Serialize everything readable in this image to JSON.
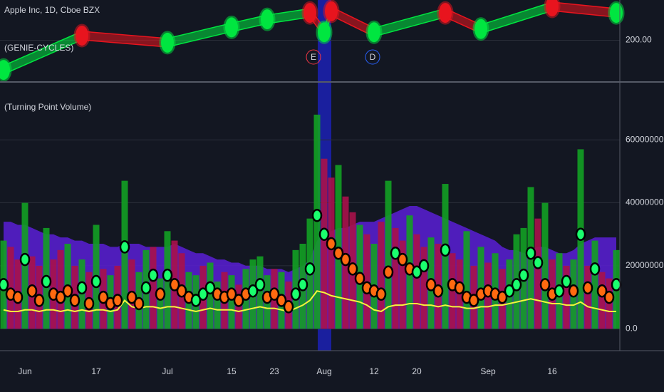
{
  "chart_data": [
    {
      "type": "line",
      "title": "Apple Inc, 1D, Cboe BZX",
      "subtitle": "(GENIE-CYCLES)",
      "x": [
        0,
        11,
        23,
        32,
        37,
        43,
        45,
        46,
        52,
        62,
        67,
        77,
        86
      ],
      "values": [
        181.6,
        202.9,
        198.5,
        208,
        213,
        217,
        205,
        218,
        205,
        217,
        207,
        221,
        217
      ],
      "up_color": "#00e640",
      "down_color": "#e8141e",
      "ylim": [
        175,
        225
      ],
      "yticks": [
        {
          "value": 200,
          "label": "200.00"
        }
      ],
      "annotations": [
        {
          "text": "E",
          "color": "#f23645"
        },
        {
          "text": "D",
          "color": "#2962ff"
        }
      ]
    },
    {
      "type": "bar",
      "title": "(Turning Point Volume)",
      "categories": [
        null,
        null,
        null,
        "Jun",
        null,
        null,
        null,
        null,
        null,
        null,
        null,
        null,
        null,
        "17",
        null,
        null,
        null,
        null,
        null,
        null,
        null,
        null,
        null,
        "Jul",
        null,
        null,
        null,
        null,
        null,
        null,
        null,
        null,
        "15",
        null,
        null,
        null,
        null,
        null,
        "23",
        null,
        null,
        null,
        null,
        null,
        null,
        "Aug",
        null,
        null,
        null,
        null,
        null,
        null,
        "12",
        null,
        null,
        null,
        null,
        null,
        "20",
        null,
        null,
        null,
        null,
        null,
        null,
        null,
        null,
        null,
        "Sep",
        null,
        null,
        null,
        null,
        null,
        null,
        null,
        null,
        "16",
        null,
        null,
        null,
        null,
        null,
        null,
        null,
        null,
        null
      ],
      "values": [
        28000000.0,
        26000000.0,
        22000000.0,
        40000000.0,
        23000000.0,
        20000000.0,
        32000000.0,
        22000000.0,
        25000000.0,
        27000000.0,
        20000000.0,
        22000000.0,
        18000000.0,
        33000000.0,
        19000000.0,
        17000000.0,
        20000000.0,
        47000000.0,
        22000000.0,
        18000000.0,
        25000000.0,
        26000000.0,
        16000000.0,
        31000000.0,
        28000000.0,
        24000000.0,
        18000000.0,
        17000000.0,
        20000000.0,
        21000000.0,
        15000000.0,
        18000000.0,
        17000000.0,
        14000000.0,
        19000000.0,
        22000000.0,
        23000000.0,
        17000000.0,
        19000000.0,
        18000000.0,
        15000000.0,
        25000000.0,
        27000000.0,
        35000000.0,
        68000000.0,
        54000000.0,
        48000000.0,
        52000000.0,
        42000000.0,
        37000000.0,
        33000000.0,
        30000000.0,
        27000000.0,
        34000000.0,
        47000000.0,
        32000000.0,
        28000000.0,
        36000000.0,
        30000000.0,
        26000000.0,
        29000000.0,
        27000000.0,
        46000000.0,
        24000000.0,
        22000000.0,
        31000000.0,
        20000000.0,
        26000000.0,
        21000000.0,
        24000000.0,
        19000000.0,
        22000000.0,
        30000000.0,
        32000000.0,
        45000000.0,
        35000000.0,
        40000000.0,
        22000000.0,
        24000000.0,
        20000000.0,
        22000000.0,
        57000000.0,
        20000000.0,
        28000000.0,
        18000000.0,
        16000000.0,
        25000000.0
      ],
      "bar_colors": [
        "#13a024",
        "#a8124a",
        "#a8124a",
        "#13a024",
        "#a8124a",
        "#a8124a",
        "#13a024",
        "#a8124a",
        "#a8124a",
        "#13a024",
        "#a8124a",
        "#13a024",
        "#a8124a",
        "#13a024",
        "#a8124a",
        "#13a024",
        "#a8124a",
        "#13a024",
        "#a8124a",
        "#13a024",
        "#13a024",
        "#a8124a",
        "#13a024",
        "#13a024",
        "#a8124a",
        "#a8124a",
        "#13a024",
        "#13a024",
        "#a8124a",
        "#13a024",
        "#13a024",
        "#a8124a",
        "#13a024",
        "#a8124a",
        "#13a024",
        "#13a024",
        "#13a024",
        "#13a024",
        "#a8124a",
        "#13a024",
        "#a8124a",
        "#13a024",
        "#13a024",
        "#13a024",
        "#13a024",
        "#a8124a",
        "#a8124a",
        "#13a024",
        "#a8124a",
        "#a8124a",
        "#13a024",
        "#a8124a",
        "#13a024",
        "#a8124a",
        "#13a024",
        "#a8124a",
        "#a8124a",
        "#13a024",
        "#a8124a",
        "#a8124a",
        "#13a024",
        "#a8124a",
        "#13a024",
        "#a8124a",
        "#a8124a",
        "#13a024",
        "#a8124a",
        "#13a024",
        "#a8124a",
        "#13a024",
        "#a8124a",
        "#13a024",
        "#13a024",
        "#13a024",
        "#13a024",
        "#a8124a",
        "#13a024",
        "#a8124a",
        "#13a024",
        "#a8124a",
        "#13a024",
        "#13a024",
        "#a8124a",
        "#13a024",
        "#a8124a",
        "#a8124a",
        "#13a024"
      ],
      "average": [
        34000000.0,
        34000000.0,
        33000000.0,
        33000000.0,
        32000000.0,
        31000000.0,
        30000000.0,
        30000000.0,
        29000000.0,
        29000000.0,
        28000000.0,
        28000000.0,
        27000000.0,
        27000000.0,
        27000000.0,
        26000000.0,
        26000000.0,
        27000000.0,
        27000000.0,
        27000000.0,
        26000000.0,
        26000000.0,
        26000000.0,
        26000000.0,
        27000000.0,
        26000000.0,
        25000000.0,
        24000000.0,
        24000000.0,
        23000000.0,
        22000000.0,
        22000000.0,
        21000000.0,
        21000000.0,
        20000000.0,
        20000000.0,
        20000000.0,
        19000000.0,
        19000000.0,
        19000000.0,
        18000000.0,
        19000000.0,
        20000000.0,
        22000000.0,
        28000000.0,
        30000000.0,
        31000000.0,
        32000000.0,
        32000000.0,
        33000000.0,
        34000000.0,
        34000000.0,
        34000000.0,
        35000000.0,
        36000000.0,
        37000000.0,
        38000000.0,
        39000000.0,
        39000000.0,
        38000000.0,
        37000000.0,
        36000000.0,
        35000000.0,
        34000000.0,
        33000000.0,
        32000000.0,
        31000000.0,
        30000000.0,
        29000000.0,
        28000000.0,
        26000000.0,
        25000000.0,
        25000000.0,
        24000000.0,
        25000000.0,
        26000000.0,
        26000000.0,
        25000000.0,
        24000000.0,
        24000000.0,
        25000000.0,
        27000000.0,
        28000000.0,
        29000000.0,
        29000000.0,
        29000000.0,
        29000000.0
      ],
      "average_color": "#5b1fd6",
      "line": [
        6000000.0,
        5500000.0,
        5500000.0,
        6000000.0,
        6000000.0,
        5500000.0,
        6000000.0,
        6000000.0,
        5500000.0,
        6000000.0,
        5500000.0,
        6000000.0,
        5500000.0,
        6000000.0,
        6000000.0,
        5500000.0,
        6000000.0,
        9000000.0,
        7000000.0,
        6500000.0,
        7000000.0,
        7000000.0,
        6500000.0,
        7000000.0,
        7000000.0,
        6500000.0,
        6000000.0,
        5500000.0,
        6000000.0,
        6500000.0,
        6000000.0,
        6000000.0,
        6000000.0,
        5500000.0,
        6000000.0,
        6500000.0,
        7000000.0,
        6500000.0,
        6500000.0,
        6000000.0,
        5500000.0,
        6500000.0,
        7500000.0,
        9000000.0,
        12000000.0,
        11500000.0,
        10500000.0,
        10000000.0,
        9500000.0,
        9000000.0,
        8500000.0,
        7500000.0,
        6000000.0,
        5500000.0,
        7000000.0,
        7500000.0,
        7500000.0,
        8000000.0,
        8000000.0,
        7500000.0,
        7500000.0,
        7000000.0,
        7500000.0,
        7000000.0,
        7000000.0,
        6500000.0,
        6500000.0,
        7000000.0,
        7000000.0,
        7500000.0,
        7500000.0,
        8000000.0,
        8500000.0,
        9000000.0,
        9500000.0,
        9000000.0,
        8500000.0,
        8000000.0,
        8000000.0,
        7500000.0,
        7500000.0,
        8500000.0,
        7000000.0,
        6500000.0,
        6000000.0,
        5500000.0,
        5500000.0
      ],
      "line_color": "#f5f53c",
      "markers": [
        14000000.0,
        11000000.0,
        10000000.0,
        22000000.0,
        12000000.0,
        9000000.0,
        15000000.0,
        11000000.0,
        10000000.0,
        12000000.0,
        9000000.0,
        13000000.0,
        8000000.0,
        15000000.0,
        10000000.0,
        8000000.0,
        9000000.0,
        26000000.0,
        10000000.0,
        8000000.0,
        13000000.0,
        17000000.0,
        11000000.0,
        17000000.0,
        14000000.0,
        12000000.0,
        10000000.0,
        9000000.0,
        11000000.0,
        13000000.0,
        11000000.0,
        10000000.0,
        11000000.0,
        9000000.0,
        11000000.0,
        12000000.0,
        14000000.0,
        10000000.0,
        11000000.0,
        9000000.0,
        7000000.0,
        11000000.0,
        14000000.0,
        19000000.0,
        36000000.0,
        30000000.0,
        27000000.0,
        24000000.0,
        22000000.0,
        19000000.0,
        16000000.0,
        13000000.0,
        12000000.0,
        11000000.0,
        18000000.0,
        24000000.0,
        22000000.0,
        19000000.0,
        18000000.0,
        20000000.0,
        14000000.0,
        12000000.0,
        25000000.0,
        14000000.0,
        13000000.0,
        10000000.0,
        9000000.0,
        11000000.0,
        12000000.0,
        11000000.0,
        10000000.0,
        12000000.0,
        14000000.0,
        17000000.0,
        24000000.0,
        21000000.0,
        14000000.0,
        11000000.0,
        12000000.0,
        15000000.0,
        12000000.0,
        30000000.0,
        13000000.0,
        19000000.0,
        12000000.0,
        10000000.0,
        14000000.0
      ],
      "marker_colors": [
        "#1aff6e",
        "#ff6a10",
        "#ff6a10",
        "#1aff6e",
        "#ff6a10",
        "#ff6a10",
        "#1aff6e",
        "#ff6a10",
        "#ff6a10",
        "#ff6a10",
        "#ff6a10",
        "#1aff6e",
        "#ff6a10",
        "#1aff6e",
        "#ff6a10",
        "#ff6a10",
        "#ff6a10",
        "#1aff6e",
        "#ff6a10",
        "#ff6a10",
        "#1aff6e",
        "#1aff6e",
        "#ff6a10",
        "#1aff6e",
        "#ff6a10",
        "#ff6a10",
        "#ff6a10",
        "#1aff6e",
        "#1aff6e",
        "#1aff6e",
        "#ff6a10",
        "#ff6a10",
        "#ff6a10",
        "#ff6a10",
        "#ff6a10",
        "#1aff6e",
        "#1aff6e",
        "#ff6a10",
        "#ff6a10",
        "#ff6a10",
        "#ff6a10",
        "#1aff6e",
        "#1aff6e",
        "#1aff6e",
        "#1aff6e",
        "#1aff6e",
        "#ff6a10",
        "#ff6a10",
        "#ff6a10",
        "#ff6a10",
        "#ff6a10",
        "#ff6a10",
        "#ff6a10",
        "#ff6a10",
        "#ff6a10",
        "#1aff6e",
        "#ff6a10",
        "#ff6a10",
        "#1aff6e",
        "#1aff6e",
        "#ff6a10",
        "#ff6a10",
        "#1aff6e",
        "#ff6a10",
        "#ff6a10",
        "#ff6a10",
        "#ff6a10",
        "#ff6a10",
        "#ff6a10",
        "#ff6a10",
        "#ff6a10",
        "#1aff6e",
        "#1aff6e",
        "#1aff6e",
        "#1aff6e",
        "#1aff6e",
        "#ff6a10",
        "#ff6a10",
        "#1aff6e",
        "#1aff6e",
        "#ff6a10",
        "#1aff6e",
        "#ff6a10",
        "#1aff6e",
        "#ff6a10",
        "#ff6a10",
        "#1aff6e"
      ],
      "ylim": [
        -6500000.0,
        77700000.0
      ],
      "yticks": [
        {
          "value": 0,
          "label": "0.0"
        },
        {
          "value": 20000000,
          "label": "20000000.0"
        },
        {
          "value": 40000000,
          "label": "40000000.0"
        },
        {
          "value": 60000000,
          "label": "60000000.0"
        }
      ],
      "grid": true
    }
  ]
}
